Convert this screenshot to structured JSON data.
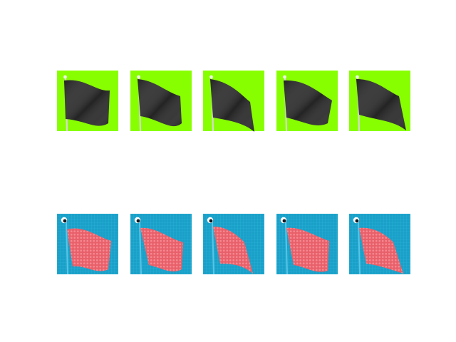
{
  "rows": [
    {
      "name": "rendered-flag-row",
      "frames": [
        "frame-1",
        "frame-2",
        "frame-3",
        "frame-4",
        "frame-5"
      ],
      "background_color": "#88ff00",
      "flag_color": "#2c2c2c",
      "pole_color": "#d8d8d0",
      "finial_color": "#f0f0e8"
    },
    {
      "name": "particle-flag-row",
      "frames": [
        "frame-1",
        "frame-2",
        "frame-3",
        "frame-4",
        "frame-5"
      ],
      "background_color": "#1aa0c8",
      "flag_color": "#e8606a",
      "particle_color": "#f48890",
      "grid_color": "#30b8de",
      "pole_color": "#58c4e6"
    }
  ]
}
